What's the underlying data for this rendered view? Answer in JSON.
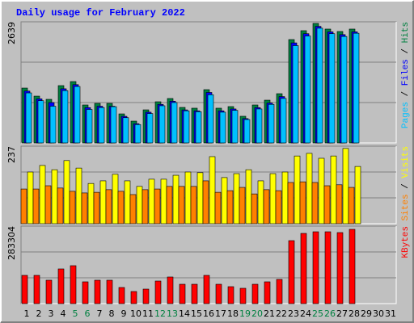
{
  "chart_data": [
    {
      "type": "bar",
      "title": "Daily usage for February 2022",
      "ylim": [
        0,
        2639
      ],
      "yticks": [
        2639
      ],
      "legend_separator": " / ",
      "series": [
        {
          "name": "Hits",
          "color": "#008040",
          "values": [
            1196,
            1020,
            950,
            1249,
            1337,
            827,
            862,
            862,
            633,
            475,
            721,
            897,
            968,
            774,
            757,
            1161,
            757,
            792,
            581,
            827,
            932,
            1073,
            2252,
            2446,
            2604,
            2481,
            2428,
            2481,
            null,
            null,
            null
          ]
        },
        {
          "name": "Files",
          "color": "#0000ff",
          "values": [
            1130,
            960,
            880,
            1180,
            1270,
            770,
            800,
            800,
            580,
            420,
            670,
            840,
            910,
            720,
            700,
            1100,
            700,
            740,
            530,
            770,
            870,
            1010,
            2180,
            2380,
            2540,
            2420,
            2360,
            2420,
            null,
            null,
            null
          ]
        },
        {
          "name": "Pages",
          "color": "#00c0ff",
          "values": [
            1090,
            920,
            800,
            1140,
            1230,
            730,
            770,
            790,
            550,
            400,
            640,
            810,
            880,
            700,
            680,
            1050,
            670,
            710,
            510,
            740,
            840,
            970,
            2120,
            2330,
            2500,
            2380,
            2320,
            2390,
            null,
            null,
            null
          ]
        }
      ]
    },
    {
      "type": "bar",
      "ylim": [
        0,
        237
      ],
      "yticks": [
        237
      ],
      "legend_separator": " / ",
      "series": [
        {
          "name": "Visits",
          "color": "#ffff00",
          "values": [
            158,
            178,
            165,
            193,
            170,
            123,
            131,
            151,
            131,
            114,
            136,
            136,
            148,
            158,
            156,
            205,
            141,
            153,
            165,
            131,
            153,
            158,
            207,
            215,
            200,
            207,
            230,
            175,
            null,
            null,
            null
          ]
        },
        {
          "name": "Sites",
          "color": "#ff8000",
          "values": [
            106,
            106,
            116,
            109,
            99,
            94,
            96,
            104,
            99,
            89,
            104,
            106,
            114,
            114,
            114,
            131,
            96,
            101,
            111,
            91,
            104,
            101,
            126,
            128,
            126,
            116,
            119,
            111,
            null,
            null,
            null
          ]
        }
      ]
    },
    {
      "type": "bar",
      "ylim": [
        0,
        283304
      ],
      "yticks": [
        283304
      ],
      "categories": [
        "1",
        "2",
        "3",
        "4",
        "5",
        "6",
        "7",
        "8",
        "9",
        "10",
        "11",
        "12",
        "13",
        "14",
        "15",
        "16",
        "17",
        "18",
        "19",
        "20",
        "21",
        "22",
        "23",
        "24",
        "25",
        "26",
        "27",
        "28",
        "29",
        "30",
        "31"
      ],
      "category_colors": [
        "#000000",
        "#000000",
        "#000000",
        "#000000",
        "#008040",
        "#008040",
        "#000000",
        "#000000",
        "#000000",
        "#000000",
        "#000000",
        "#008040",
        "#008040",
        "#000000",
        "#000000",
        "#000000",
        "#000000",
        "#000000",
        "#008040",
        "#008040",
        "#000000",
        "#000000",
        "#000000",
        "#000000",
        "#008040",
        "#008040",
        "#000000",
        "#000000",
        "#000000",
        "#000000",
        "#000000"
      ],
      "series": [
        {
          "name": "KBytes",
          "color": "#ff0000",
          "values": [
            103300,
            103300,
            85600,
            126900,
            138700,
            79700,
            85600,
            85600,
            59000,
            44300,
            53100,
            82600,
            97400,
            70800,
            70800,
            103300,
            70800,
            62000,
            56100,
            70800,
            79700,
            88500,
            230200,
            256700,
            262600,
            262600,
            259700,
            271500,
            null,
            null,
            null
          ]
        }
      ]
    }
  ]
}
